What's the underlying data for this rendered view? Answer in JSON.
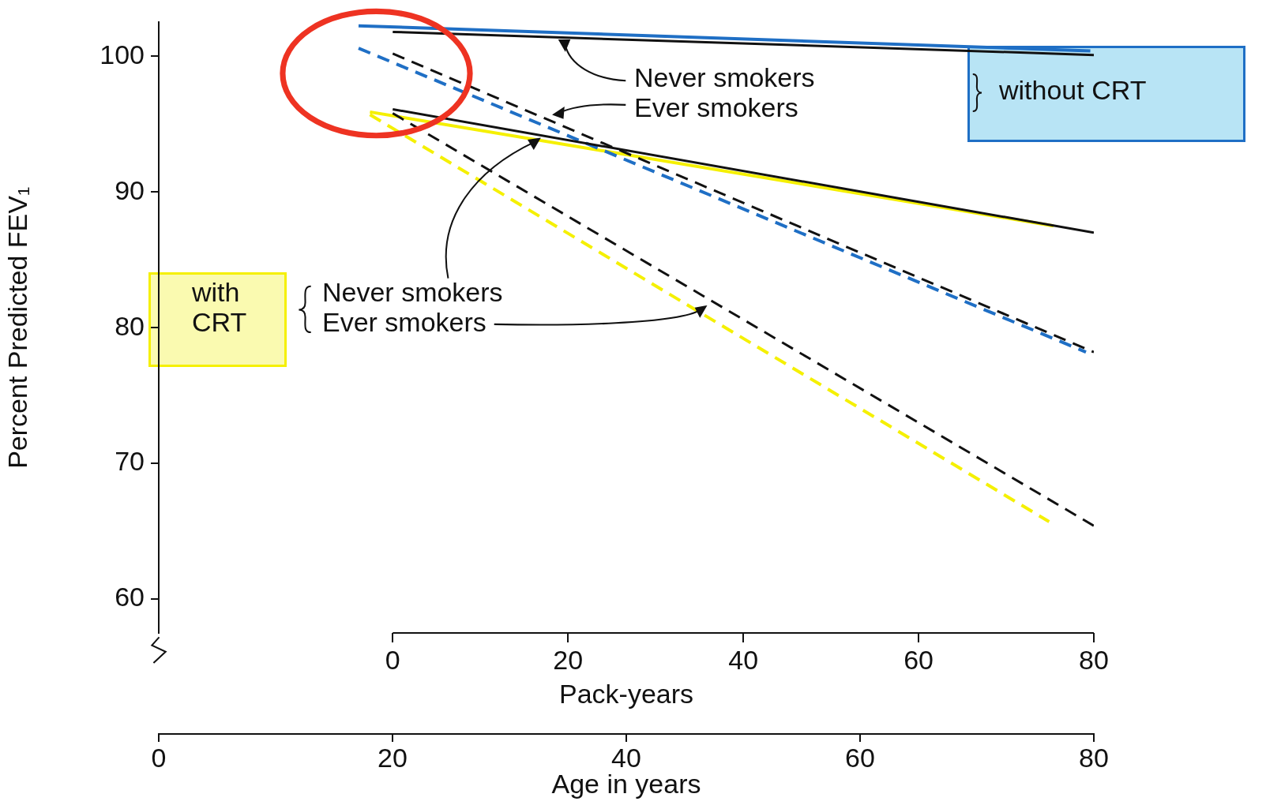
{
  "chart_data": {
    "type": "line",
    "ylabel": "Percent Predicted FEV₁",
    "xlabel": "Pack-years",
    "x2label": "Age in years",
    "xlim": [
      -26.7,
      80
    ],
    "xticks": [
      0,
      20,
      40,
      60,
      80
    ],
    "x2lim": [
      0,
      80
    ],
    "x2ticks": [
      0,
      20,
      40,
      60,
      80
    ],
    "ylim": [
      57.5,
      102.5
    ],
    "yticks": [
      60,
      70,
      80,
      90,
      100
    ],
    "grid": false,
    "legend": false,
    "marker": "none",
    "series": [
      {
        "color": "#111111",
        "line_style": "solid",
        "x": [
          0,
          80
        ],
        "values": [
          101.8,
          100.1
        ]
      },
      {
        "color": "#111111",
        "line_style": "dashed",
        "x": [
          0,
          80
        ],
        "values": [
          100.2,
          78.2
        ]
      },
      {
        "color": "#111111",
        "line_style": "solid",
        "x": [
          0,
          80
        ],
        "values": [
          96.1,
          87.0
        ]
      },
      {
        "color": "#111111",
        "line_style": "dashed",
        "x": [
          0,
          80
        ],
        "values": [
          95.8,
          65.4
        ]
      },
      {
        "color": "#1f6fc5",
        "line_style": "solid",
        "x": [
          -3.9,
          79.6
        ],
        "values": [
          102.25,
          100.4
        ]
      },
      {
        "color": "#1f6fc5",
        "line_style": "dashed",
        "x": [
          -3.9,
          79.1
        ],
        "values": [
          100.6,
          78.2
        ]
      },
      {
        "color": "#f5f000",
        "line_style": "solid",
        "x": [
          -2.6,
          75.4
        ],
        "values": [
          95.9,
          87.5
        ]
      },
      {
        "color": "#f5f000",
        "line_style": "dashed",
        "x": [
          -2.6,
          74.9
        ],
        "values": [
          95.7,
          65.7
        ]
      }
    ],
    "annotations": [
      "Never smokers",
      "Ever smokers",
      "without CRT",
      {
        "text": "Never smokers",
        "x": 16.2,
        "y": 93.7
      },
      {
        "text": "Ever smokers",
        "x": 35.3,
        "y": 81.4
      },
      "with",
      "CRT"
    ]
  }
}
